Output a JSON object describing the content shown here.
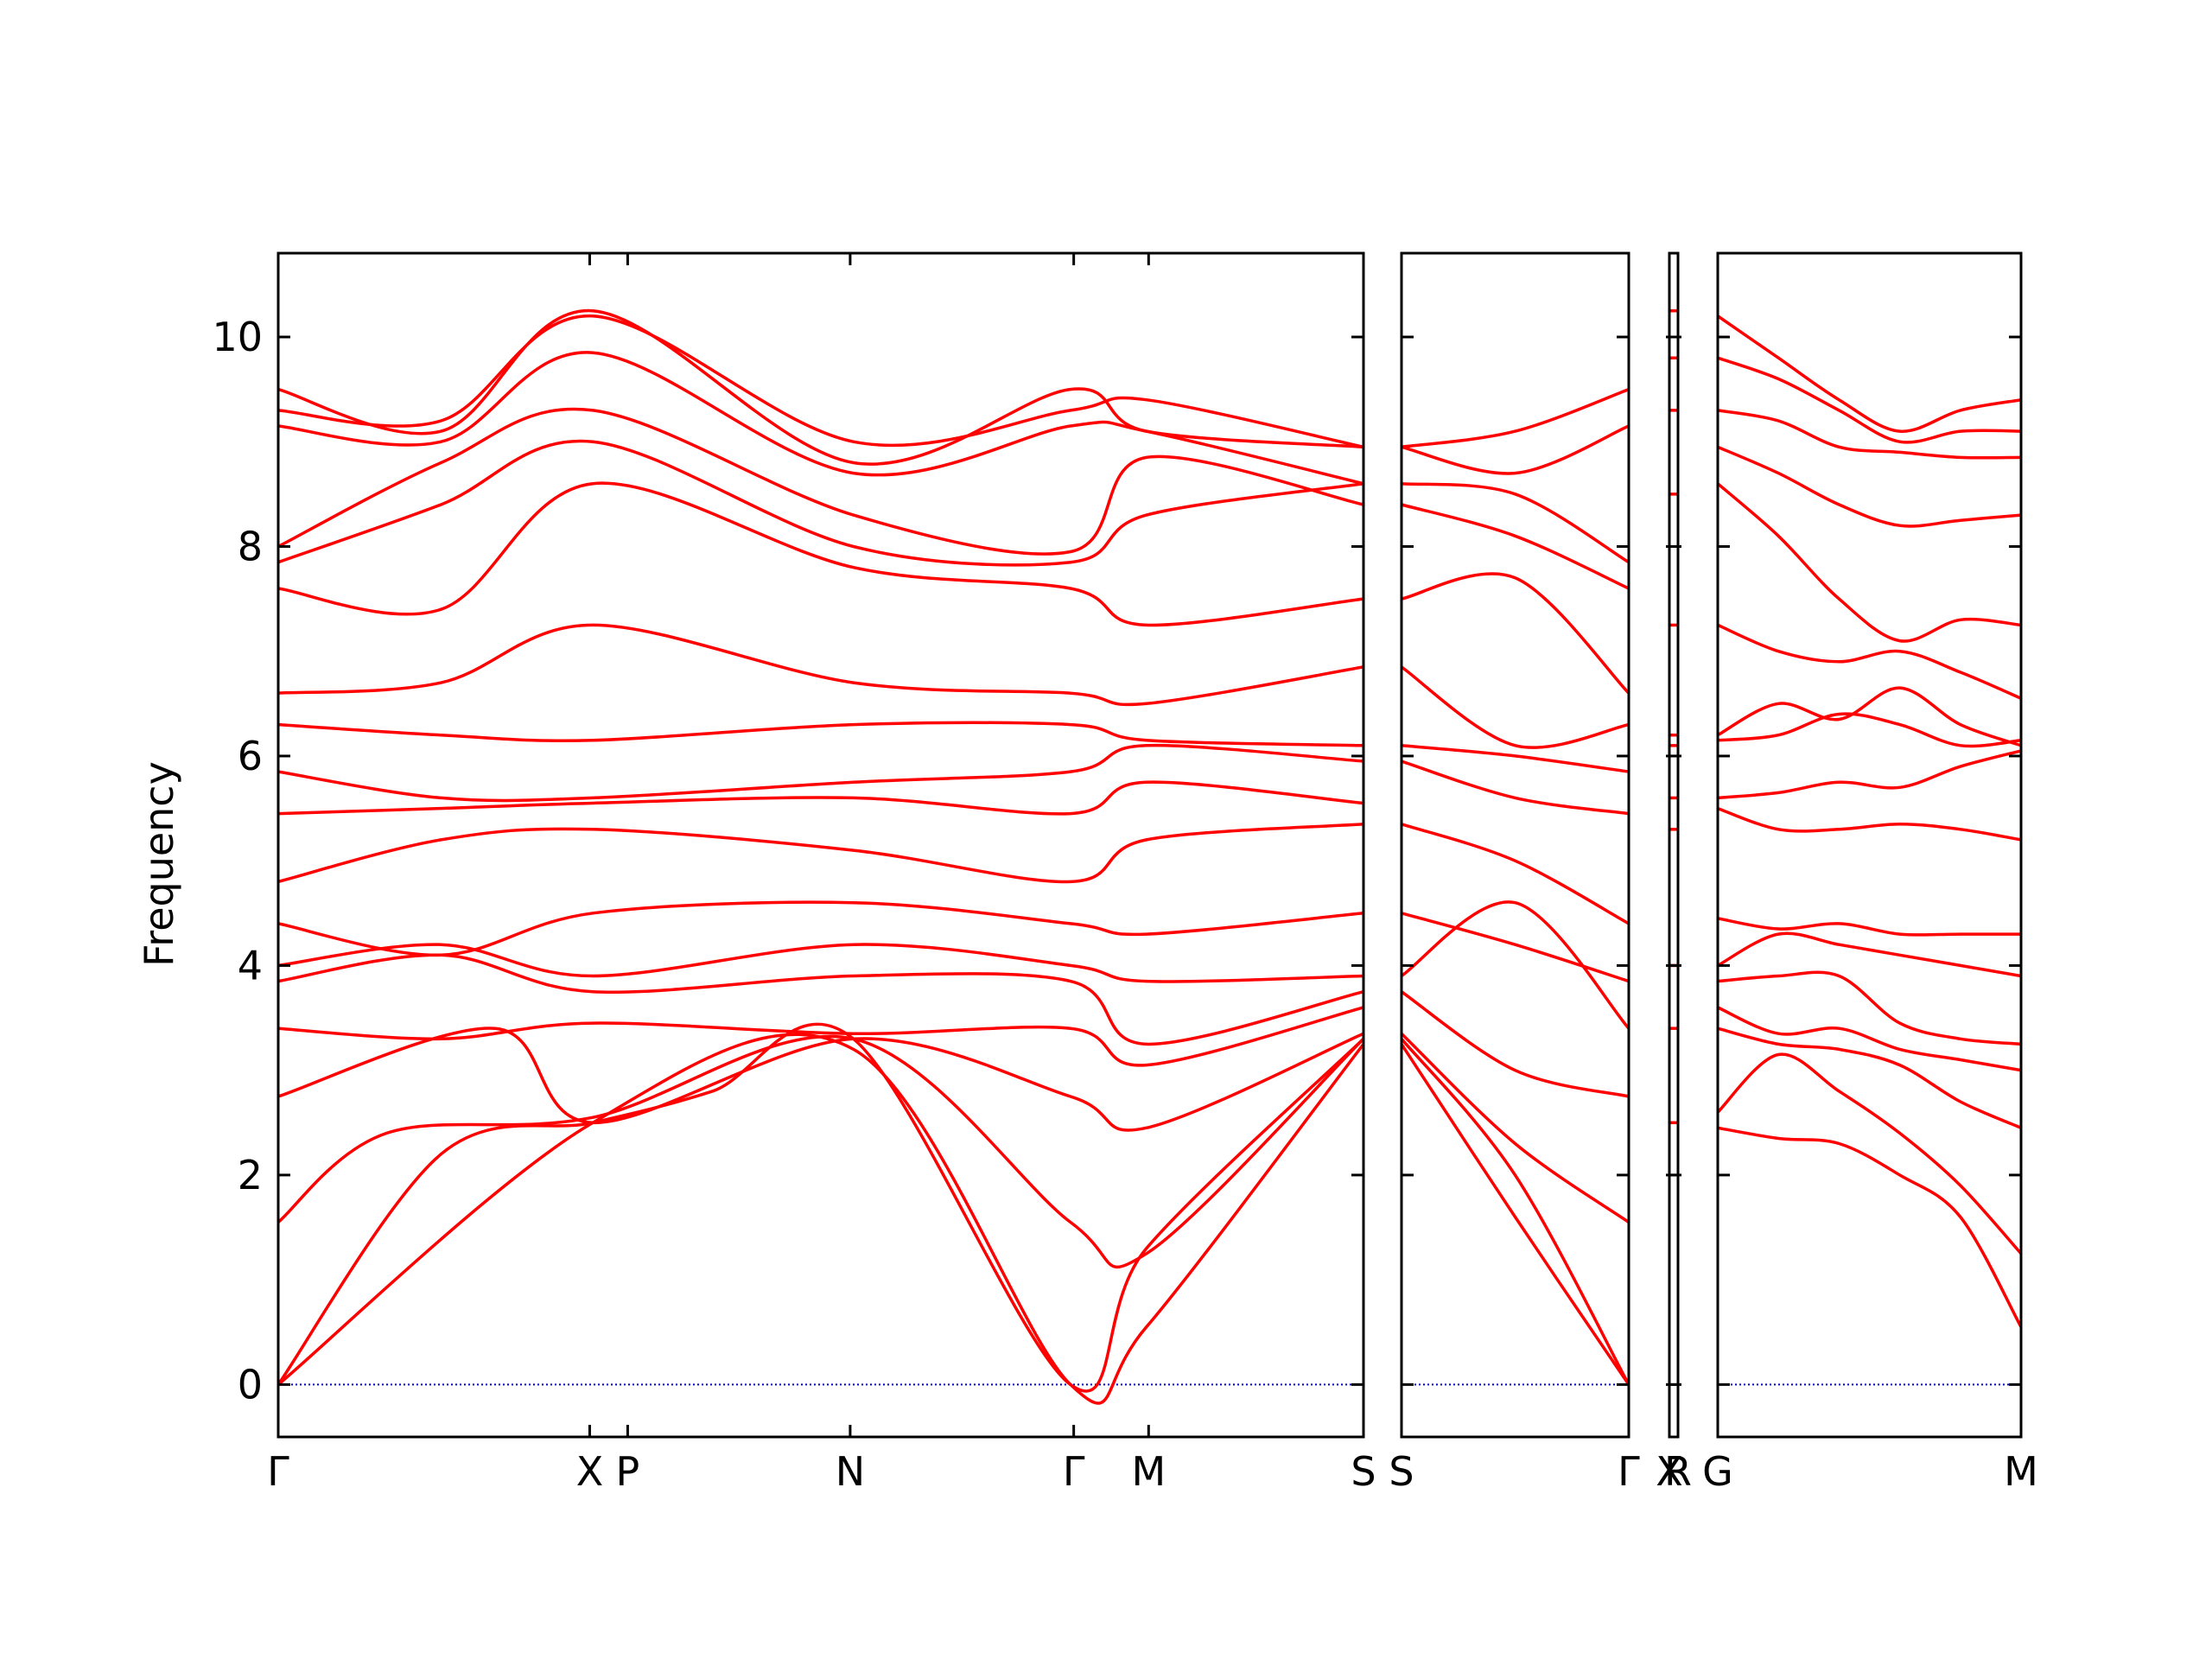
{
  "chart_data": {
    "type": "line",
    "ylabel": "Frequency",
    "ylim": [
      -0.5,
      10.8
    ],
    "yticks": [
      0,
      2,
      4,
      6,
      8,
      10
    ],
    "zero_line_color": "#0000cc",
    "series_color": "#ff0000",
    "panels": [
      {
        "name": "panel-1",
        "xticks": [
          {
            "label": "Γ",
            "pos": 0.0
          },
          {
            "label": "X",
            "pos": 0.287
          },
          {
            "label": "P",
            "pos": 0.322
          },
          {
            "label": "N",
            "pos": 0.527
          },
          {
            "label": "Γ",
            "pos": 0.733
          },
          {
            "label": "M",
            "pos": 0.802
          },
          {
            "label": "S",
            "pos": 1.0
          }
        ],
        "bands": [
          {
            "x": [
              0,
              0.29,
              0.53,
              0.73,
              0.8,
              1
            ],
            "y": [
              0,
              2.5,
              3.2,
              0,
              0.55,
              3.25
            ]
          },
          {
            "x": [
              0,
              0.15,
              0.29,
              0.4,
              0.53,
              0.73,
              0.8,
              1
            ],
            "y": [
              0,
              2.2,
              2.5,
              2.8,
              3.3,
              0,
              1.3,
              3.3
            ]
          },
          {
            "x": [
              0,
              0.1,
              0.29,
              0.53,
              0.73,
              0.8,
              1
            ],
            "y": [
              1.55,
              2.4,
              2.55,
              3.3,
              1.55,
              1.25,
              3.3
            ]
          },
          {
            "x": [
              0,
              0.2,
              0.29,
              0.53,
              0.73,
              0.8,
              1
            ],
            "y": [
              2.75,
              3.4,
              2.5,
              3.3,
              2.75,
              2.45,
              3.35
            ]
          },
          {
            "x": [
              0,
              0.15,
              0.29,
              0.53,
              0.73,
              0.8,
              1
            ],
            "y": [
              3.4,
              3.3,
              3.45,
              3.35,
              3.4,
              3.05,
              3.6
            ]
          },
          {
            "x": [
              0,
              0.15,
              0.29,
              0.53,
              0.73,
              0.8,
              1
            ],
            "y": [
              3.85,
              4.1,
              3.75,
              3.9,
              3.85,
              3.25,
              3.75
            ]
          },
          {
            "x": [
              0,
              0.15,
              0.29,
              0.53,
              0.73,
              0.8,
              1
            ],
            "y": [
              4.0,
              4.2,
              3.9,
              4.2,
              4.0,
              3.85,
              3.9
            ]
          },
          {
            "x": [
              0,
              0.15,
              0.29,
              0.53,
              0.73,
              0.8,
              1
            ],
            "y": [
              4.4,
              4.1,
              4.5,
              4.6,
              4.4,
              4.3,
              4.5
            ]
          },
          {
            "x": [
              0,
              0.15,
              0.29,
              0.53,
              0.73,
              0.8,
              1
            ],
            "y": [
              4.8,
              5.2,
              5.3,
              5.1,
              4.8,
              5.2,
              5.35
            ]
          },
          {
            "x": [
              0,
              0.15,
              0.29,
              0.53,
              0.73,
              0.8,
              1
            ],
            "y": [
              5.45,
              5.5,
              5.55,
              5.6,
              5.45,
              5.75,
              5.55
            ]
          },
          {
            "x": [
              0,
              0.15,
              0.29,
              0.53,
              0.73,
              0.8,
              1
            ],
            "y": [
              5.85,
              5.6,
              5.6,
              5.75,
              5.85,
              6.1,
              5.95
            ]
          },
          {
            "x": [
              0,
              0.15,
              0.29,
              0.53,
              0.73,
              0.8,
              1
            ],
            "y": [
              6.3,
              6.2,
              6.15,
              6.3,
              6.3,
              6.15,
              6.1
            ]
          },
          {
            "x": [
              0,
              0.15,
              0.29,
              0.53,
              0.73,
              0.8,
              1
            ],
            "y": [
              6.6,
              6.7,
              7.25,
              6.7,
              6.6,
              6.5,
              6.85
            ]
          },
          {
            "x": [
              0,
              0.15,
              0.29,
              0.53,
              0.73,
              0.8,
              1
            ],
            "y": [
              7.6,
              7.4,
              8.6,
              7.8,
              7.6,
              7.25,
              7.5
            ]
          },
          {
            "x": [
              0,
              0.15,
              0.29,
              0.53,
              0.73,
              0.8,
              1
            ],
            "y": [
              7.85,
              8.4,
              9.0,
              8.0,
              7.85,
              8.3,
              8.6
            ]
          },
          {
            "x": [
              0,
              0.15,
              0.29,
              0.53,
              0.73,
              0.8,
              1
            ],
            "y": [
              8.0,
              8.8,
              9.3,
              8.3,
              7.95,
              8.85,
              8.4
            ]
          },
          {
            "x": [
              0,
              0.15,
              0.29,
              0.53,
              0.73,
              0.8,
              1
            ],
            "y": [
              9.15,
              9.0,
              9.85,
              8.7,
              9.15,
              9.1,
              8.6
            ]
          },
          {
            "x": [
              0,
              0.15,
              0.29,
              0.53,
              0.73,
              0.8,
              1
            ],
            "y": [
              9.3,
              9.2,
              10.2,
              9.0,
              9.3,
              9.4,
              8.95
            ]
          },
          {
            "x": [
              0,
              0.15,
              0.29,
              0.53,
              0.73,
              0.8,
              1
            ],
            "y": [
              9.5,
              9.1,
              10.25,
              8.8,
              9.5,
              9.1,
              8.95
            ]
          }
        ]
      },
      {
        "name": "panel-2",
        "xticks": [
          {
            "label": "S",
            "pos": 0.0
          },
          {
            "label": "Γ",
            "pos": 1.0
          }
        ],
        "bands": [
          {
            "x": [
              0,
              0.5,
              1
            ],
            "y": [
              3.25,
              1.6,
              0
            ]
          },
          {
            "x": [
              0,
              0.5,
              1
            ],
            "y": [
              3.3,
              2.0,
              0
            ]
          },
          {
            "x": [
              0,
              0.5,
              1
            ],
            "y": [
              3.35,
              2.3,
              1.55
            ]
          },
          {
            "x": [
              0,
              0.5,
              1
            ],
            "y": [
              3.75,
              3.0,
              2.75
            ]
          },
          {
            "x": [
              0,
              0.5,
              1
            ],
            "y": [
              3.9,
              4.6,
              3.4
            ]
          },
          {
            "x": [
              0,
              0.5,
              1
            ],
            "y": [
              4.5,
              4.2,
              3.85
            ]
          },
          {
            "x": [
              0,
              0.5,
              1
            ],
            "y": [
              5.35,
              5.0,
              4.4
            ]
          },
          {
            "x": [
              0,
              0.5,
              1
            ],
            "y": [
              5.95,
              5.6,
              5.45
            ]
          },
          {
            "x": [
              0,
              0.5,
              1
            ],
            "y": [
              6.1,
              6.0,
              5.85
            ]
          },
          {
            "x": [
              0,
              0.5,
              1
            ],
            "y": [
              6.85,
              6.1,
              6.3
            ]
          },
          {
            "x": [
              0,
              0.5,
              1
            ],
            "y": [
              7.5,
              7.7,
              6.6
            ]
          },
          {
            "x": [
              0,
              0.5,
              1
            ],
            "y": [
              8.4,
              8.1,
              7.6
            ]
          },
          {
            "x": [
              0,
              0.5,
              1
            ],
            "y": [
              8.6,
              8.5,
              7.85
            ]
          },
          {
            "x": [
              0,
              0.5,
              1
            ],
            "y": [
              8.95,
              8.7,
              9.15
            ]
          },
          {
            "x": [
              0,
              0.5,
              1
            ],
            "y": [
              8.95,
              9.1,
              9.5
            ]
          }
        ]
      },
      {
        "name": "panel-3",
        "xticks": [
          {
            "label": "X",
            "pos": 0.0
          },
          {
            "label": "R",
            "pos": 1.0
          }
        ],
        "markers_y": [
          2.5,
          3.4,
          4.0,
          5.3,
          5.6,
          6.1,
          6.2,
          7.25,
          8.5,
          9.3,
          9.8,
          10.25
        ]
      },
      {
        "name": "panel-4",
        "xticks": [
          {
            "label": "G",
            "pos": 0.0
          },
          {
            "label": "M",
            "pos": 1.0
          }
        ],
        "bands": [
          {
            "x": [
              0,
              0.2,
              0.4,
              0.6,
              0.8,
              1
            ],
            "y": [
              2.45,
              2.35,
              2.3,
              2.0,
              1.6,
              0.55
            ]
          },
          {
            "x": [
              0,
              0.2,
              0.4,
              0.6,
              0.8,
              1
            ],
            "y": [
              2.6,
              3.15,
              2.8,
              2.4,
              1.9,
              1.25
            ]
          },
          {
            "x": [
              0,
              0.2,
              0.4,
              0.6,
              0.8,
              1
            ],
            "y": [
              3.4,
              3.25,
              3.2,
              3.05,
              2.7,
              2.45
            ]
          },
          {
            "x": [
              0,
              0.2,
              0.4,
              0.6,
              0.8,
              1
            ],
            "y": [
              3.6,
              3.35,
              3.4,
              3.2,
              3.1,
              3.0
            ]
          },
          {
            "x": [
              0,
              0.2,
              0.4,
              0.6,
              0.8,
              1
            ],
            "y": [
              3.85,
              3.9,
              3.9,
              3.45,
              3.3,
              3.25
            ]
          },
          {
            "x": [
              0,
              0.2,
              0.4,
              0.6,
              0.8,
              1
            ],
            "y": [
              4.0,
              4.3,
              4.2,
              4.1,
              4.0,
              3.9
            ]
          },
          {
            "x": [
              0,
              0.2,
              0.4,
              0.6,
              0.8,
              1
            ],
            "y": [
              4.45,
              4.35,
              4.4,
              4.3,
              4.3,
              4.3
            ]
          },
          {
            "x": [
              0,
              0.2,
              0.4,
              0.6,
              0.8,
              1
            ],
            "y": [
              5.5,
              5.3,
              5.3,
              5.35,
              5.3,
              5.2
            ]
          },
          {
            "x": [
              0,
              0.2,
              0.4,
              0.6,
              0.8,
              1
            ],
            "y": [
              5.6,
              5.65,
              5.75,
              5.7,
              5.9,
              6.05
            ]
          },
          {
            "x": [
              0,
              0.2,
              0.4,
              0.6,
              0.8,
              1
            ],
            "y": [
              6.15,
              6.2,
              6.4,
              6.3,
              6.1,
              6.15
            ]
          },
          {
            "x": [
              0,
              0.2,
              0.4,
              0.6,
              0.8,
              1
            ],
            "y": [
              6.2,
              6.5,
              6.35,
              6.65,
              6.3,
              6.1
            ]
          },
          {
            "x": [
              0,
              0.2,
              0.4,
              0.6,
              0.8,
              1
            ],
            "y": [
              7.25,
              7.0,
              6.9,
              7.0,
              6.8,
              6.55
            ]
          },
          {
            "x": [
              0,
              0.2,
              0.4,
              0.6,
              0.8,
              1
            ],
            "y": [
              8.6,
              8.1,
              7.5,
              7.1,
              7.3,
              7.25
            ]
          },
          {
            "x": [
              0,
              0.2,
              0.4,
              0.6,
              0.8,
              1
            ],
            "y": [
              8.95,
              8.7,
              8.4,
              8.2,
              8.25,
              8.3
            ]
          },
          {
            "x": [
              0,
              0.2,
              0.4,
              0.6,
              0.8,
              1
            ],
            "y": [
              9.3,
              9.2,
              8.95,
              8.9,
              8.85,
              8.85
            ]
          },
          {
            "x": [
              0,
              0.2,
              0.4,
              0.6,
              0.8,
              1
            ],
            "y": [
              9.8,
              9.6,
              9.3,
              9.0,
              9.1,
              9.1
            ]
          },
          {
            "x": [
              0,
              0.2,
              0.4,
              0.6,
              0.8,
              1
            ],
            "y": [
              10.2,
              9.8,
              9.4,
              9.1,
              9.3,
              9.4
            ]
          }
        ]
      }
    ]
  }
}
